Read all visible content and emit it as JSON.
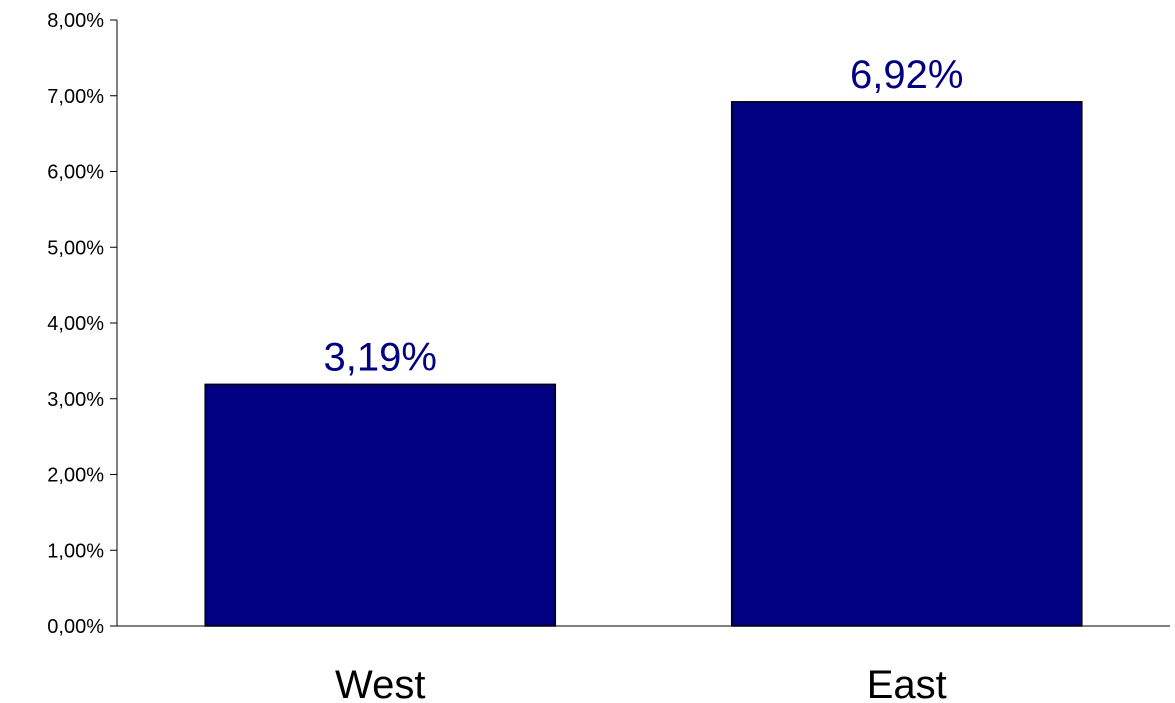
{
  "chart_data": {
    "type": "bar",
    "categories": [
      "West",
      "East"
    ],
    "values": [
      3.19,
      6.92
    ],
    "data_labels": [
      "3,19%",
      "6,92%"
    ],
    "y_tick_labels": [
      "0,00%",
      "1,00%",
      "2,00%",
      "3,00%",
      "4,00%",
      "5,00%",
      "6,00%",
      "7,00%",
      "8,00%"
    ],
    "y_ticks": [
      0,
      1,
      2,
      3,
      4,
      5,
      6,
      7,
      8
    ],
    "ylim": [
      0,
      8
    ],
    "y_unit": "%",
    "grid": false,
    "legend": "none",
    "colors": {
      "bar_fill": "#000080",
      "bar_stroke": "#000000",
      "data_label": "#000080",
      "axis": "#000000"
    }
  }
}
